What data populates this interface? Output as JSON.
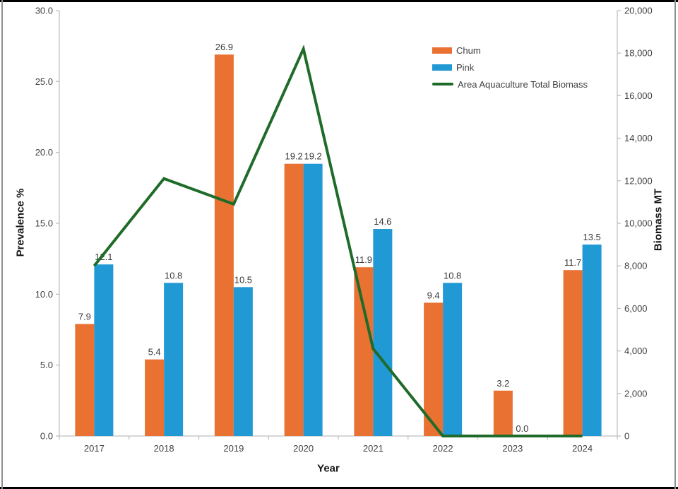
{
  "chart_data": {
    "type": "bar",
    "title": "",
    "categories": [
      "2017",
      "2018",
      "2019",
      "2020",
      "2021",
      "2022",
      "2023",
      "2024"
    ],
    "series": [
      {
        "name": "Chum",
        "type": "bar",
        "axis": "left",
        "color": "#E97132",
        "values": [
          7.9,
          5.4,
          26.9,
          19.2,
          11.9,
          9.4,
          3.2,
          11.7
        ]
      },
      {
        "name": "Pink",
        "type": "bar",
        "axis": "left",
        "color": "#2199D5",
        "values": [
          12.1,
          10.8,
          10.5,
          19.2,
          14.6,
          10.8,
          0.0,
          13.5
        ]
      },
      {
        "name": "Area Aquaculture Total Biomass",
        "type": "line",
        "axis": "right",
        "color": "#1F6B29",
        "values": [
          8000,
          12100,
          10900,
          18200,
          4100,
          0,
          0,
          0
        ]
      }
    ],
    "left_axis": {
      "title": "Prevalence %",
      "min": 0,
      "max": 30,
      "tick_labels": [
        "0.0",
        "5.0",
        "10.0",
        "15.0",
        "20.0",
        "25.0",
        "30.0"
      ]
    },
    "right_axis": {
      "title": "Biomass MT",
      "min": 0,
      "max": 20000,
      "tick_labels": [
        "0",
        "2,000",
        "4,000",
        "6,000",
        "8,000",
        "10,000",
        "12,000",
        "14,000",
        "16,000",
        "18,000",
        "20,000"
      ]
    },
    "x_axis": {
      "title": "Year"
    },
    "bar_value_decimals": 1,
    "grid": false,
    "legend_position": "top-right",
    "axis_color": "#BFBFBF",
    "tick_text_color": "#404040",
    "plot_background": "#FFFFFF"
  }
}
